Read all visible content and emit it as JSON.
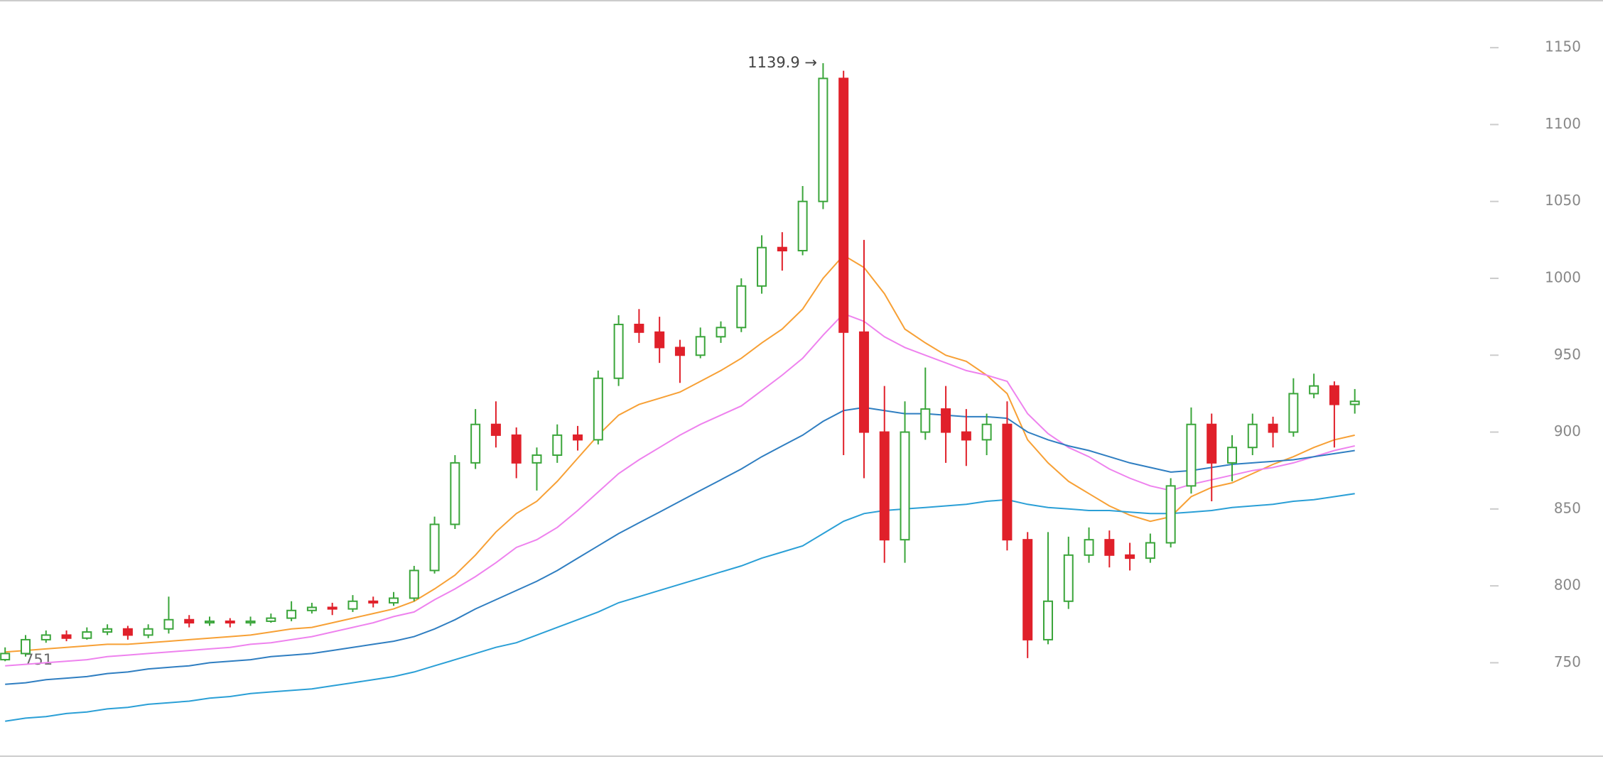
{
  "chart_data": {
    "type": "candlestick",
    "categories": [
      null,
      null,
      null,
      null,
      null,
      null,
      null,
      null,
      null,
      null,
      null,
      null,
      null,
      null,
      null,
      null,
      null,
      null,
      null,
      null,
      null,
      null,
      null,
      null,
      null,
      null,
      null,
      null,
      null,
      null,
      null,
      null,
      null,
      null,
      null,
      null,
      null,
      null,
      null,
      null,
      null,
      null,
      null,
      null,
      null,
      null,
      null,
      null,
      null,
      null,
      null,
      null,
      null,
      null,
      null,
      null,
      null,
      null,
      null,
      null,
      null,
      null,
      null,
      null,
      null,
      null,
      null
    ],
    "open": [
      752,
      756,
      765,
      768,
      766,
      770,
      772,
      768,
      772,
      778,
      776,
      777,
      776,
      777,
      779,
      784,
      786,
      785,
      790,
      789,
      792,
      810,
      840,
      880,
      905,
      898,
      880,
      885,
      898,
      895,
      935,
      970,
      965,
      955,
      950,
      962,
      968,
      995,
      1020,
      1018,
      1050,
      1130,
      965,
      900,
      830,
      900,
      915,
      900,
      895,
      905,
      830,
      765,
      790,
      820,
      830,
      820,
      818,
      828,
      865,
      905,
      880,
      890,
      905,
      900,
      925,
      930,
      918
    ],
    "high": [
      760,
      768,
      771,
      771,
      773,
      775,
      774,
      775,
      793,
      781,
      780,
      779,
      780,
      782,
      790,
      789,
      789,
      794,
      793,
      796,
      813,
      845,
      885,
      915,
      920,
      903,
      890,
      905,
      904,
      940,
      976,
      980,
      975,
      960,
      968,
      972,
      1000,
      1028,
      1030,
      1060,
      1139.9,
      1135,
      1025,
      930,
      920,
      942,
      930,
      915,
      912,
      920,
      835,
      835,
      832,
      838,
      836,
      828,
      834,
      870,
      916,
      912,
      898,
      912,
      910,
      935,
      938,
      933,
      928
    ],
    "low": [
      751,
      754,
      763,
      764,
      765,
      768,
      765,
      766,
      769,
      773,
      774,
      773,
      774,
      776,
      777,
      782,
      781,
      783,
      786,
      787,
      790,
      808,
      837,
      876,
      890,
      870,
      862,
      880,
      888,
      892,
      930,
      958,
      945,
      932,
      948,
      958,
      965,
      990,
      1005,
      1015,
      1045,
      885,
      870,
      815,
      815,
      895,
      880,
      878,
      885,
      823,
      753,
      762,
      785,
      815,
      812,
      810,
      815,
      825,
      860,
      855,
      868,
      885,
      890,
      897,
      922,
      890,
      912
    ],
    "close": [
      756,
      765,
      768,
      766,
      770,
      772,
      768,
      772,
      778,
      776,
      777,
      776,
      777,
      779,
      784,
      786,
      785,
      790,
      789,
      792,
      810,
      840,
      880,
      905,
      898,
      880,
      885,
      898,
      895,
      935,
      970,
      965,
      955,
      950,
      962,
      968,
      995,
      1020,
      1018,
      1050,
      1130,
      965,
      900,
      830,
      900,
      915,
      900,
      895,
      905,
      830,
      765,
      790,
      820,
      830,
      820,
      818,
      828,
      865,
      905,
      880,
      890,
      905,
      900,
      925,
      930,
      918,
      920
    ],
    "up_color": "#3aa53a",
    "down_color": "#e0202a",
    "series": [
      {
        "color": "#f7a035",
        "values": [
          757,
          758,
          759,
          760,
          761,
          762,
          762,
          763,
          764,
          765,
          766,
          767,
          768,
          770,
          772,
          773,
          776,
          779,
          782,
          785,
          790,
          798,
          807,
          820,
          835,
          847,
          855,
          868,
          883,
          898,
          911,
          918,
          922,
          926,
          933,
          940,
          948,
          958,
          967,
          980,
          1000,
          1015,
          1007,
          990,
          967,
          958,
          950,
          946,
          937,
          925,
          895,
          880,
          868,
          860,
          852,
          846,
          842,
          845,
          858,
          864,
          867,
          873,
          879,
          884,
          890,
          895,
          898
        ]
      },
      {
        "color": "#ee82ee",
        "values": [
          748,
          749,
          750,
          751,
          752,
          754,
          755,
          756,
          757,
          758,
          759,
          760,
          762,
          763,
          765,
          767,
          770,
          773,
          776,
          780,
          783,
          791,
          798,
          806,
          815,
          825,
          830,
          838,
          849,
          861,
          873,
          882,
          890,
          898,
          905,
          911,
          917,
          927,
          937,
          948,
          963,
          977,
          972,
          962,
          955,
          950,
          945,
          940,
          937,
          933,
          912,
          899,
          890,
          884,
          876,
          870,
          865,
          862,
          866,
          869,
          872,
          875,
          877,
          880,
          884,
          888,
          891
        ]
      },
      {
        "color": "#2f7ec1",
        "values": [
          736,
          737,
          739,
          740,
          741,
          743,
          744,
          746,
          747,
          748,
          750,
          751,
          752,
          754,
          755,
          756,
          758,
          760,
          762,
          764,
          767,
          772,
          778,
          785,
          791,
          797,
          803,
          810,
          818,
          826,
          834,
          841,
          848,
          855,
          862,
          869,
          876,
          884,
          891,
          898,
          907,
          914,
          916,
          914,
          912,
          912,
          911,
          910,
          910,
          909,
          900,
          895,
          891,
          888,
          884,
          880,
          877,
          874,
          875,
          877,
          879,
          880,
          881,
          882,
          884,
          886,
          888
        ]
      },
      {
        "color": "#2a9fd6",
        "values": [
          712,
          714,
          715,
          717,
          718,
          720,
          721,
          723,
          724,
          725,
          727,
          728,
          730,
          731,
          732,
          733,
          735,
          737,
          739,
          741,
          744,
          748,
          752,
          756,
          760,
          763,
          768,
          773,
          778,
          783,
          789,
          793,
          797,
          801,
          805,
          809,
          813,
          818,
          822,
          826,
          834,
          842,
          847,
          849,
          850,
          851,
          852,
          853,
          855,
          856,
          853,
          851,
          850,
          849,
          849,
          848,
          847,
          847,
          848,
          849,
          851,
          852,
          853,
          855,
          856,
          858,
          860
        ]
      }
    ],
    "ylim": [
      686,
      1181
    ],
    "yticks": [
      750,
      800,
      850,
      900,
      950,
      1000,
      1050,
      1100,
      1150
    ],
    "annotations": [
      "1139.9 →",
      "751"
    ]
  }
}
